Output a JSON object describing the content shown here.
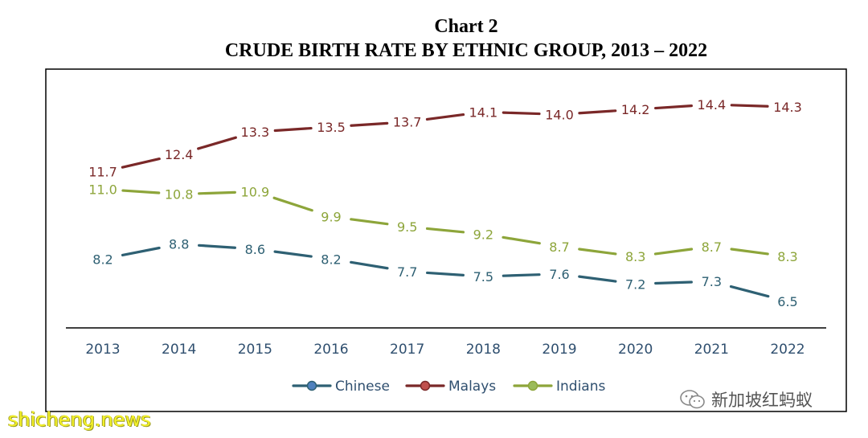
{
  "chart_data": {
    "type": "line",
    "title": "Chart 2",
    "subtitle": "CRUDE BIRTH RATE BY ETHNIC GROUP, 2013 – 2022",
    "categories": [
      "2013",
      "2014",
      "2015",
      "2016",
      "2017",
      "2018",
      "2019",
      "2020",
      "2021",
      "2022"
    ],
    "series": [
      {
        "name": "Chinese",
        "color": "#2e6073",
        "values": [
          8.2,
          8.8,
          8.6,
          8.2,
          7.7,
          7.5,
          7.6,
          7.2,
          7.3,
          6.5
        ],
        "labels": [
          "8.2",
          "8.8",
          "8.6",
          "8.2",
          "7.7",
          "7.5",
          "7.6",
          "7.2",
          "7.3",
          "6.5"
        ]
      },
      {
        "name": "Malays",
        "color": "#7a2828",
        "values": [
          11.7,
          12.4,
          13.3,
          13.5,
          13.7,
          14.1,
          14.0,
          14.2,
          14.4,
          14.3
        ],
        "labels": [
          "11.7",
          "12.4",
          "13.3",
          "13.5",
          "13.7",
          "14.1",
          "14.0",
          "14.2",
          "14.4",
          "14.3"
        ]
      },
      {
        "name": "Indians",
        "color": "#8da53a",
        "values": [
          11.0,
          10.8,
          10.9,
          9.9,
          9.5,
          9.2,
          8.7,
          8.3,
          8.7,
          8.3
        ],
        "labels": [
          "11.0",
          "10.8",
          "10.9",
          "9.9",
          "9.5",
          "9.2",
          "8.7",
          "8.3",
          "8.7",
          "8.3"
        ]
      }
    ],
    "ylim": [
      5,
      15.5
    ],
    "grid": false,
    "legend_position": "bottom",
    "legend_marker_colors": {
      "Chinese": "#4f81bd",
      "Malays": "#c0504d",
      "Indians": "#9bbb59"
    },
    "axis_label_color": "#2f4f6f"
  },
  "watermarks": {
    "left": "shicheng.news",
    "right": "新加坡红蚂蚁"
  }
}
